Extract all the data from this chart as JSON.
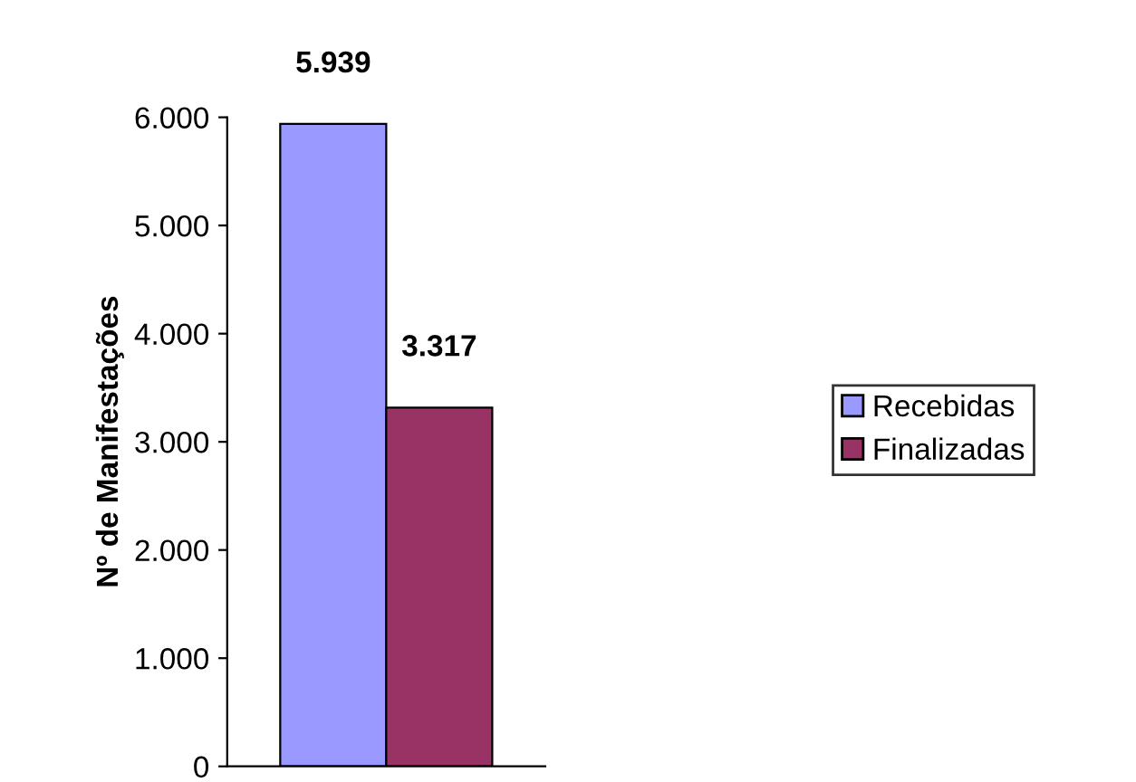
{
  "chart_data": {
    "type": "bar",
    "ylabel": "Nº de Manifestações",
    "categories": [
      null
    ],
    "series": [
      {
        "name": "Recebidas",
        "color": "#9999ff",
        "values": [
          5939
        ],
        "value_labels": [
          "5.939"
        ]
      },
      {
        "name": "Finalizadas",
        "color": "#993366",
        "values": [
          3317
        ],
        "value_labels": [
          "3.317"
        ]
      }
    ],
    "ylim": [
      0,
      6000
    ],
    "yticks": [
      0,
      {
        "value": 1000,
        "label": "1.000"
      },
      {
        "value": 2000,
        "label": "2.000"
      },
      {
        "value": 3000,
        "label": "3.000"
      },
      {
        "value": 4000,
        "label": "4.000"
      },
      {
        "value": 5000,
        "label": "5.000"
      },
      {
        "value": 6000,
        "label": "6.000"
      }
    ],
    "tick_labels": "y",
    "grid": false,
    "legend": "right"
  }
}
